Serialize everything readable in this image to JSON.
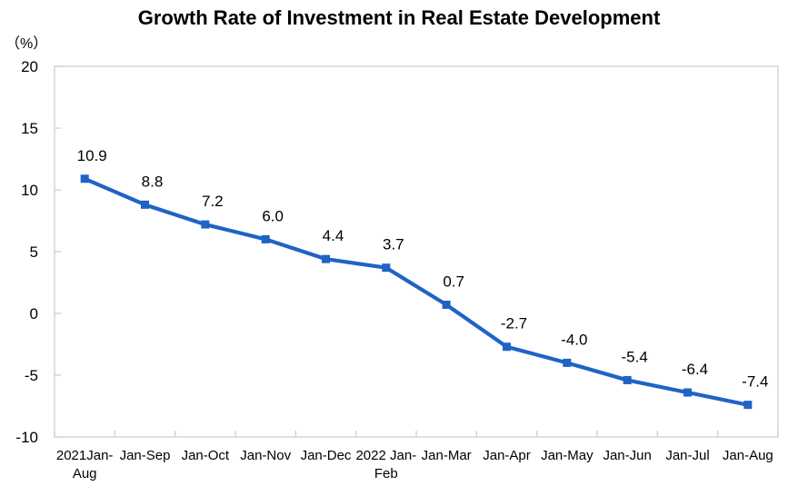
{
  "chart_data": {
    "type": "line",
    "title": "Growth Rate of Investment in Real Estate Development",
    "unit_label": "（%）",
    "categories": [
      [
        "2021Jan-",
        "Aug"
      ],
      [
        "Jan-Sep"
      ],
      [
        "Jan-Oct"
      ],
      [
        "Jan-Nov"
      ],
      [
        "Jan-Dec"
      ],
      [
        "2022 Jan-",
        "Feb"
      ],
      [
        "Jan-Mar"
      ],
      [
        "Jan-Apr"
      ],
      [
        "Jan-May"
      ],
      [
        "Jan-Jun"
      ],
      [
        "Jan-Jul"
      ],
      [
        "Jan-Aug"
      ]
    ],
    "values": [
      10.9,
      8.8,
      7.2,
      6.0,
      4.4,
      3.7,
      0.7,
      -2.7,
      -4.0,
      -5.4,
      -6.4,
      -7.4
    ],
    "data_labels": [
      "10.9",
      "8.8",
      "7.2",
      "6.0",
      "4.4",
      "3.7",
      "0.7",
      "-2.7",
      "-4.0",
      "-5.4",
      "-6.4",
      "-7.4"
    ],
    "ylim": [
      -10,
      20
    ],
    "yticks": [
      20,
      15,
      10,
      5,
      0,
      -5,
      -10
    ],
    "grid": false,
    "legend": "none",
    "marker": "square",
    "line_color": "#1F63C6",
    "axis_color": "#D2D2D2",
    "text_color": "#000000",
    "background_color": "#FFFFFF"
  }
}
